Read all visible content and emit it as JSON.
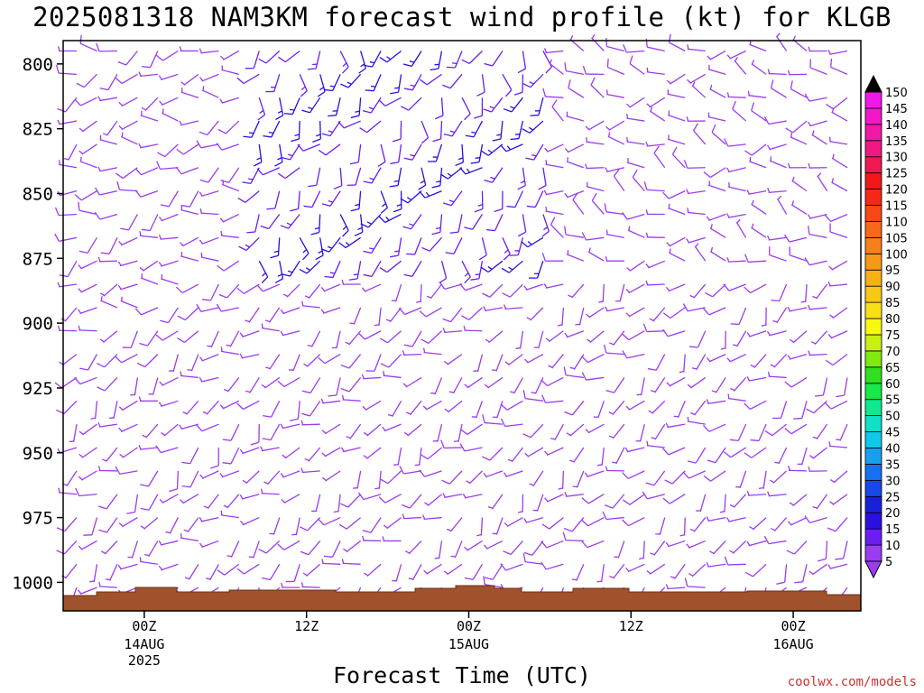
{
  "title": "2025081318 NAM3KM forecast wind profile (kt) for KLGB",
  "xlabel": "Forecast Time (UTC)",
  "credit": "coolwx.com/models",
  "chart_data": {
    "type": "wind_barb_time_height",
    "y_axis": {
      "label": "",
      "ticks": [
        800,
        825,
        850,
        875,
        900,
        925,
        950,
        975,
        1000
      ],
      "range": [
        791,
        1011
      ],
      "unit": "hPa"
    },
    "x_axis": {
      "ticks": [
        {
          "label": "00Z",
          "sub": [
            "14AUG",
            "2025"
          ],
          "hour": 6
        },
        {
          "label": "12Z",
          "sub": [],
          "hour": 18
        },
        {
          "label": "00Z",
          "sub": [
            "15AUG"
          ],
          "hour": 30
        },
        {
          "label": "12Z",
          "sub": [],
          "hour": 42
        },
        {
          "label": "00Z",
          "sub": [
            "16AUG"
          ],
          "hour": 54
        }
      ],
      "range": [
        0,
        59
      ]
    },
    "colorbar": {
      "levels": [
        5,
        10,
        15,
        20,
        25,
        30,
        35,
        40,
        45,
        50,
        55,
        60,
        65,
        70,
        75,
        80,
        85,
        90,
        95,
        100,
        105,
        110,
        115,
        120,
        125,
        130,
        135,
        140,
        145,
        150
      ],
      "colors": [
        "#9a3cf0",
        "#6a1ef0",
        "#2a10e0",
        "#1820d8",
        "#1848e8",
        "#1870f0",
        "#18a0f0",
        "#10c8e8",
        "#10e0c8",
        "#10e890",
        "#18e848",
        "#30e020",
        "#80ea10",
        "#c8f010",
        "#f8f810",
        "#f8e018",
        "#f8c818",
        "#f8b018",
        "#f89818",
        "#f88018",
        "#f86818",
        "#f84818",
        "#f82818",
        "#f01818",
        "#f01850",
        "#f01880",
        "#f018a8",
        "#f018c8",
        "#f018e8",
        "#e010f0"
      ],
      "low_arrow_color": "#9a3cf0",
      "high_arrow_color": "#000000"
    },
    "wind_regimes": [
      {
        "region": "upper_left_day1",
        "hours": [
          0,
          14
        ],
        "levels": [
          795,
          900
        ],
        "dir_deg": 250,
        "speed_kt": 7
      },
      {
        "region": "upper_blue_band",
        "hours": [
          14,
          36
        ],
        "levels": [
          795,
          880
        ],
        "dir_deg": 200,
        "speed_kt": 14
      },
      {
        "region": "upper_right",
        "hours": [
          36,
          59
        ],
        "levels": [
          795,
          880
        ],
        "dir_deg": 280,
        "speed_kt": 6
      },
      {
        "region": "low_levels",
        "hours": [
          0,
          59
        ],
        "levels": [
          900,
          1005
        ],
        "dir_deg": 230,
        "speed_kt": 6
      }
    ],
    "terrain_color": "#a0522d"
  }
}
